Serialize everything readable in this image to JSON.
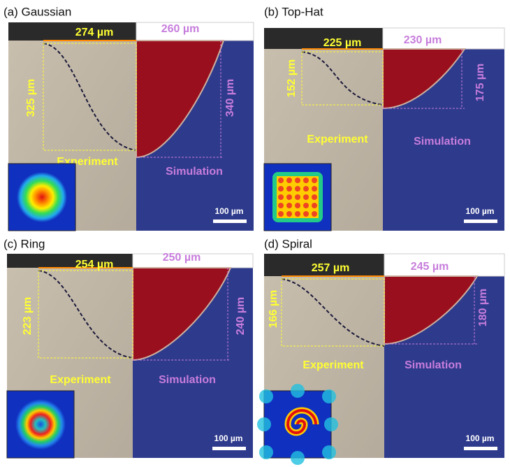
{
  "panels": [
    {
      "label": "(a) Gaussian",
      "exp_width": "274 µm",
      "sim_width": "260 µm",
      "exp_depth": "325 µm",
      "sim_depth": "340 µm",
      "experiment": "Experiment",
      "simulation": "Simulation",
      "scale": "100 µm"
    },
    {
      "label": "(b) Top-Hat",
      "exp_width": "225 µm",
      "sim_width": "230 µm",
      "exp_depth": "152 µm",
      "sim_depth": "175 µm",
      "experiment": "Experiment",
      "simulation": "Simulation",
      "scale": "100 µm"
    },
    {
      "label": "(c) Ring",
      "exp_width": "254 µm",
      "sim_width": "250 µm",
      "exp_depth": "223 µm",
      "sim_depth": "240 µm",
      "experiment": "Experiment",
      "simulation": "Simulation",
      "scale": "100 µm"
    },
    {
      "label": "(d) Spiral",
      "exp_width": "257 µm",
      "sim_width": "245 µm",
      "exp_depth": "166 µm",
      "sim_depth": "180 µm",
      "experiment": "Experiment",
      "simulation": "Simulation",
      "scale": "100 µm"
    }
  ]
}
